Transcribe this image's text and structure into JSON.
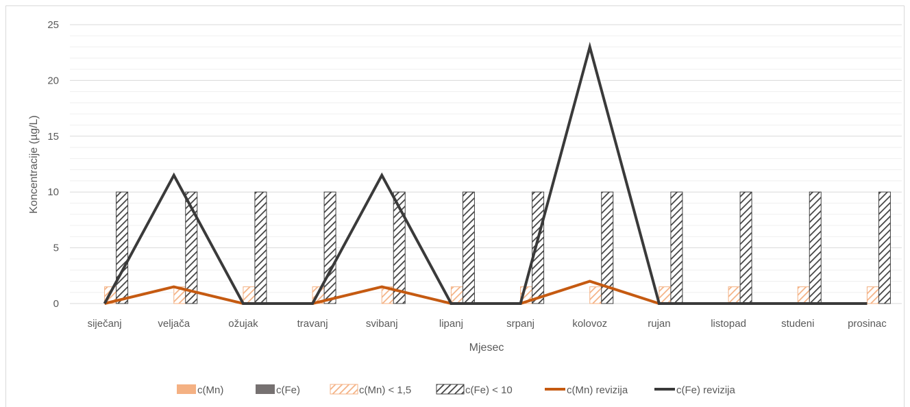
{
  "chart_data": {
    "type": "bar",
    "title": "",
    "xlabel": "Mjesec",
    "ylabel": "Koncentracije (µg/L)",
    "ylim": [
      0,
      25
    ],
    "yticks": [
      0,
      5,
      10,
      15,
      20,
      25
    ],
    "grid": true,
    "legend_position": "bottom",
    "categories": [
      "siječanj",
      "veljača",
      "ožujak",
      "travanj",
      "svibanj",
      "lipanj",
      "srpanj",
      "kolovoz",
      "rujan",
      "listopad",
      "studeni",
      "prosinac"
    ],
    "series": [
      {
        "name": "c(Mn)",
        "type": "bar",
        "color": "#f4b183",
        "pattern": "solid",
        "values": [
          0,
          0,
          0,
          0,
          0,
          0,
          0,
          0,
          0,
          0,
          0,
          0
        ]
      },
      {
        "name": "c(Fe)",
        "type": "bar",
        "color": "#767171",
        "pattern": "solid",
        "values": [
          0,
          0,
          0,
          0,
          0,
          0,
          0,
          0,
          0,
          0,
          0,
          0
        ]
      },
      {
        "name": "c(Mn) < 1,5",
        "type": "bar",
        "color": "#f4b183",
        "pattern": "hatch",
        "values": [
          1.5,
          1.5,
          1.5,
          1.5,
          1.5,
          1.5,
          1.5,
          1.5,
          1.5,
          1.5,
          1.5,
          1.5
        ]
      },
      {
        "name": "c(Fe) < 10",
        "type": "bar",
        "color": "#404040",
        "pattern": "hatch",
        "values": [
          10,
          10,
          10,
          10,
          10,
          10,
          10,
          10,
          10,
          10,
          10,
          10
        ]
      },
      {
        "name": "c(Mn) revizija",
        "type": "line",
        "color": "#c55a11",
        "values": [
          0,
          1.5,
          0,
          0,
          1.5,
          0,
          0,
          2,
          0,
          0,
          0,
          0
        ]
      },
      {
        "name": "c(Fe) revizija",
        "type": "line",
        "color": "#3a3a3a",
        "values": [
          0,
          11.5,
          0,
          0,
          11.5,
          0,
          0,
          23,
          0,
          0,
          0,
          0
        ]
      }
    ]
  }
}
